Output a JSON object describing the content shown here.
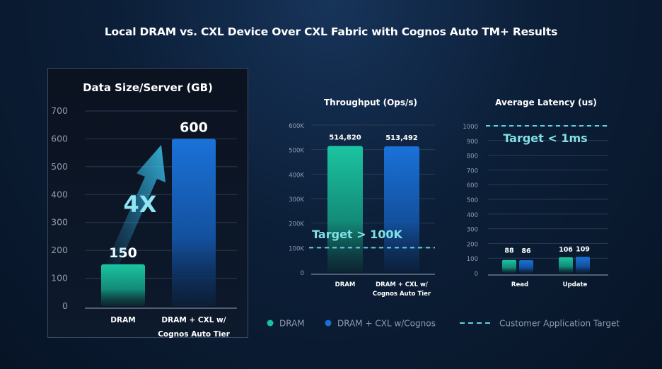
{
  "title": "Local DRAM vs. CXL Device Over CXL Fabric with Cognos Auto TM+ Results",
  "colors": {
    "dram": "#1bbf9e",
    "cxl": "#1a6fd6",
    "target": "#5fd3e0",
    "background": "#0c1f38"
  },
  "legend": {
    "placement": "bottom",
    "items": [
      {
        "label": "DRAM",
        "color": "#1bbf9e",
        "marker": "dot"
      },
      {
        "label": "DRAM + CXL w/Cognos",
        "color": "#1a6fd6",
        "marker": "dot"
      },
      {
        "label": "Customer Application Target",
        "color": "#5fd3e0",
        "marker": "dashed-line"
      }
    ]
  },
  "chart_data": [
    {
      "type": "bar",
      "title": "Data Size/Server (GB)",
      "categories": [
        "DRAM",
        "DRAM + CXL w/\nCognos Auto Tier"
      ],
      "values": [
        150,
        600
      ],
      "data_labels": [
        "150",
        "600"
      ],
      "ylim": [
        0,
        700
      ],
      "yticks": [
        "0",
        "100",
        "200",
        "300",
        "400",
        "500",
        "600",
        "700"
      ],
      "grid": true,
      "annotation": "4X"
    },
    {
      "type": "bar",
      "title": "Throughput (Ops/s)",
      "categories": [
        "DRAM",
        "DRAM + CXL w/\nCognos Auto Tier"
      ],
      "values": [
        514820,
        513492
      ],
      "data_labels": [
        "514,820",
        "513,492"
      ],
      "ylim": [
        0,
        600000
      ],
      "yticks": [
        "0",
        "100K",
        "200K",
        "300K",
        "400K",
        "500K",
        "600K"
      ],
      "grid": true,
      "target": {
        "value": 100000,
        "label": "Target > 100K"
      }
    },
    {
      "type": "bar",
      "title": "Average Latency (us)",
      "categories": [
        "Read",
        "Update"
      ],
      "series": [
        {
          "name": "DRAM",
          "values": [
            88,
            106
          ],
          "data_labels": [
            "88",
            "106"
          ]
        },
        {
          "name": "DRAM + CXL w/Cognos",
          "values": [
            86,
            109
          ],
          "data_labels": [
            "86",
            "109"
          ]
        }
      ],
      "ylim": [
        0,
        1000
      ],
      "yticks": [
        "0",
        "100",
        "200",
        "300",
        "400",
        "500",
        "600",
        "700",
        "800",
        "900",
        "1000"
      ],
      "grid": true,
      "target": {
        "value": 1000,
        "label": "Target < 1ms"
      }
    }
  ]
}
